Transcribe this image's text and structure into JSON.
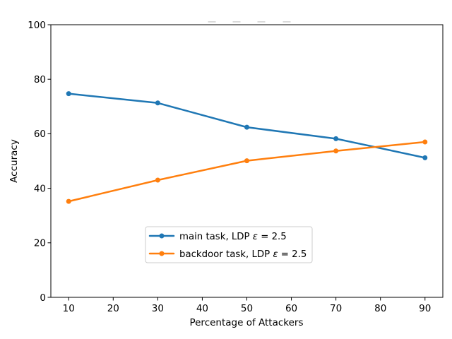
{
  "chart_data": {
    "type": "line",
    "title": "",
    "xlabel": "Percentage of Attackers",
    "ylabel": "Accuracy",
    "x": [
      10,
      30,
      50,
      70,
      90
    ],
    "series": [
      {
        "name": "main task, LDP ε = 2.5",
        "color": "#1f77b4",
        "values": [
          74.7,
          71.3,
          62.4,
          58.2,
          51.2
        ]
      },
      {
        "name": "backdoor task, LDP ε = 2.5",
        "color": "#ff7f0e",
        "values": [
          35.2,
          43.0,
          50.1,
          53.7,
          57.0
        ]
      }
    ],
    "xlim": [
      6,
      94
    ],
    "ylim": [
      0,
      100
    ],
    "xticks": [
      10,
      20,
      30,
      40,
      50,
      60,
      70,
      80,
      90
    ],
    "yticks": [
      0,
      20,
      40,
      60,
      80,
      100
    ],
    "grid": false,
    "marker": "circle",
    "line_width": 2.5,
    "axis_color": "#000000",
    "legend_position": "lower center inside",
    "legend_border_color": "#cccccc"
  },
  "decorations": {
    "clipped_text_dashes_x": [
      300,
      335,
      370,
      406
    ],
    "dash_color": "#d8d8d8"
  }
}
